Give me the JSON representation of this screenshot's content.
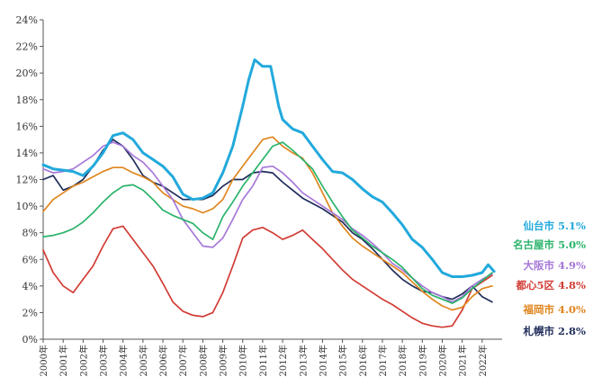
{
  "chart_data": {
    "type": "line",
    "title": "",
    "xlabel": "",
    "ylabel": "",
    "ylim": [
      0,
      24
    ],
    "y_ticks": [
      "0%",
      "2%",
      "4%",
      "6%",
      "8%",
      "10%",
      "12%",
      "14%",
      "16%",
      "18%",
      "20%",
      "22%",
      "24%"
    ],
    "x_ticks": [
      "2000年",
      "2001年",
      "2002年",
      "2003年",
      "2004年",
      "2005年",
      "2006年",
      "2007年",
      "2008年",
      "2009年",
      "2010年",
      "2011年",
      "2012年",
      "2013年",
      "2014年",
      "2015年",
      "2016年",
      "2017年",
      "2018年",
      "2019年",
      "2020年",
      "2021年",
      "2022年"
    ],
    "grid": false,
    "legend": "right",
    "series": [
      {
        "name": "仙台市",
        "label": "仙台市 5.1%",
        "color": "#22a9dc",
        "x": [
          2000,
          2000.5,
          2001,
          2001.5,
          2002,
          2002.5,
          2003,
          2003.5,
          2004,
          2004.5,
          2005,
          2005.5,
          2006,
          2006.5,
          2007,
          2007.5,
          2008,
          2008.5,
          2009,
          2009.5,
          2010,
          2010.3,
          2010.6,
          2011,
          2011.4,
          2011.8,
          2012,
          2012.5,
          2013,
          2013.5,
          2014,
          2014.5,
          2015,
          2015.5,
          2016,
          2016.5,
          2017,
          2017.5,
          2018,
          2018.5,
          2019,
          2019.5,
          2020,
          2020.5,
          2021,
          2021.5,
          2022,
          2022.3,
          2022.6
        ],
        "values": [
          13.1,
          12.8,
          12.7,
          12.6,
          12.3,
          13.0,
          14.0,
          15.3,
          15.5,
          15.0,
          14.0,
          13.5,
          13.0,
          12.2,
          10.9,
          10.5,
          10.6,
          11.0,
          12.5,
          14.5,
          17.5,
          19.5,
          21.0,
          20.5,
          20.5,
          17.5,
          16.5,
          15.8,
          15.5,
          14.5,
          13.5,
          12.6,
          12.5,
          12.0,
          11.3,
          10.7,
          10.3,
          9.5,
          8.6,
          7.5,
          6.9,
          6.0,
          5.0,
          4.7,
          4.7,
          4.8,
          5.0,
          5.6,
          5.1
        ]
      },
      {
        "name": "名古屋市",
        "label": "名古屋市 5.0%",
        "color": "#2bb36b",
        "x": [
          2000,
          2000.5,
          2001,
          2001.5,
          2002,
          2002.5,
          2003,
          2003.5,
          2004,
          2004.5,
          2005,
          2005.5,
          2006,
          2006.5,
          2007,
          2007.5,
          2008,
          2008.5,
          2009,
          2009.5,
          2010,
          2010.5,
          2011,
          2011.5,
          2012,
          2012.5,
          2013,
          2013.5,
          2014,
          2014.5,
          2015,
          2015.5,
          2016,
          2016.5,
          2017,
          2017.5,
          2018,
          2018.5,
          2019,
          2019.5,
          2020,
          2020.5,
          2021,
          2021.5,
          2022,
          2022.5
        ],
        "values": [
          7.7,
          7.8,
          8.0,
          8.3,
          8.8,
          9.5,
          10.3,
          11.0,
          11.5,
          11.6,
          11.2,
          10.5,
          9.7,
          9.3,
          9.0,
          8.7,
          8.0,
          7.5,
          9.2,
          10.3,
          11.5,
          12.5,
          13.5,
          14.5,
          14.8,
          14.2,
          13.5,
          12.8,
          11.5,
          10.3,
          9.2,
          8.2,
          7.6,
          7.0,
          6.5,
          6.0,
          5.4,
          4.6,
          3.8,
          3.3,
          3.0,
          2.7,
          3.1,
          3.8,
          4.4,
          5.0
        ]
      },
      {
        "name": "大阪市",
        "label": "大阪市 4.9%",
        "color": "#a678d8",
        "x": [
          2000,
          2000.5,
          2001,
          2001.5,
          2002,
          2002.5,
          2003,
          2003.5,
          2004,
          2004.5,
          2005,
          2005.5,
          2006,
          2006.5,
          2007,
          2007.5,
          2008,
          2008.5,
          2009,
          2009.5,
          2010,
          2010.5,
          2011,
          2011.5,
          2012,
          2012.5,
          2013,
          2013.5,
          2014,
          2014.5,
          2015,
          2015.5,
          2016,
          2016.5,
          2017,
          2017.5,
          2018,
          2018.5,
          2019,
          2019.5,
          2020,
          2020.5,
          2021,
          2021.5,
          2022,
          2022.5
        ],
        "values": [
          12.8,
          12.5,
          12.6,
          12.8,
          13.3,
          13.8,
          14.5,
          14.8,
          14.5,
          13.8,
          13.3,
          12.5,
          11.5,
          10.5,
          9.0,
          8.0,
          7.0,
          6.9,
          7.6,
          9.0,
          10.5,
          11.5,
          12.9,
          13.0,
          12.5,
          11.8,
          11.0,
          10.5,
          10.0,
          9.5,
          9.0,
          8.3,
          7.8,
          7.2,
          6.5,
          5.7,
          5.2,
          4.6,
          4.0,
          3.5,
          3.2,
          2.8,
          3.2,
          4.0,
          4.5,
          4.9
        ]
      },
      {
        "name": "都心5区",
        "label": "都心5区 4.8%",
        "color": "#d23c35",
        "x": [
          2000,
          2000.5,
          2001,
          2001.5,
          2002,
          2002.5,
          2003,
          2003.5,
          2004,
          2004.5,
          2005,
          2005.5,
          2006,
          2006.5,
          2007,
          2007.5,
          2008,
          2008.5,
          2009,
          2009.5,
          2010,
          2010.5,
          2011,
          2011.5,
          2012,
          2012.5,
          2013,
          2013.5,
          2014,
          2014.5,
          2015,
          2015.5,
          2016,
          2016.5,
          2017,
          2017.5,
          2018,
          2018.5,
          2019,
          2019.5,
          2020,
          2020.5,
          2021,
          2021.5,
          2022,
          2022.5
        ],
        "values": [
          6.7,
          5.0,
          4.0,
          3.5,
          4.5,
          5.5,
          7.0,
          8.3,
          8.5,
          7.5,
          6.5,
          5.5,
          4.2,
          2.8,
          2.1,
          1.8,
          1.7,
          2.0,
          3.5,
          5.5,
          7.6,
          8.2,
          8.4,
          8.0,
          7.5,
          7.8,
          8.2,
          7.5,
          6.8,
          6.0,
          5.2,
          4.5,
          4.0,
          3.5,
          3.0,
          2.6,
          2.1,
          1.6,
          1.2,
          1.0,
          0.9,
          1.0,
          2.2,
          3.8,
          4.3,
          4.8
        ]
      },
      {
        "name": "福岡市",
        "label": "福岡市 4.0%",
        "color": "#e0861f",
        "x": [
          2000,
          2000.5,
          2001,
          2001.5,
          2002,
          2002.5,
          2003,
          2003.5,
          2004,
          2004.5,
          2005,
          2005.5,
          2006,
          2006.5,
          2007,
          2007.5,
          2008,
          2008.5,
          2009,
          2009.5,
          2010,
          2010.5,
          2011,
          2011.5,
          2012,
          2012.5,
          2013,
          2013.5,
          2014,
          2014.5,
          2015,
          2015.5,
          2016,
          2016.5,
          2017,
          2017.5,
          2018,
          2018.5,
          2019,
          2019.5,
          2020,
          2020.5,
          2021,
          2021.5,
          2022,
          2022.5
        ],
        "values": [
          9.6,
          10.5,
          11.0,
          11.5,
          11.8,
          12.2,
          12.6,
          12.9,
          12.9,
          12.5,
          12.2,
          11.8,
          11.0,
          10.5,
          10.0,
          9.8,
          9.5,
          9.8,
          10.5,
          12.0,
          13.0,
          14.0,
          15.0,
          15.2,
          14.5,
          14.0,
          13.6,
          12.5,
          11.0,
          9.5,
          8.5,
          7.6,
          7.0,
          6.5,
          6.0,
          5.5,
          5.0,
          4.3,
          3.6,
          3.0,
          2.5,
          2.2,
          2.4,
          3.2,
          3.8,
          4.0
        ]
      },
      {
        "name": "札幌市",
        "label": "札幌市 2.8%",
        "color": "#1f2d5a",
        "x": [
          2000,
          2000.5,
          2001,
          2001.5,
          2002,
          2002.5,
          2003,
          2003.5,
          2004,
          2004.5,
          2005,
          2005.5,
          2006,
          2006.5,
          2007,
          2007.5,
          2008,
          2008.5,
          2009,
          2009.5,
          2010,
          2010.5,
          2011,
          2011.5,
          2012,
          2012.5,
          2013,
          2013.5,
          2014,
          2014.5,
          2015,
          2015.5,
          2016,
          2016.5,
          2017,
          2017.5,
          2018,
          2018.5,
          2019,
          2019.5,
          2020,
          2020.5,
          2021,
          2021.5,
          2022,
          2022.5
        ],
        "values": [
          12.0,
          12.3,
          11.2,
          11.5,
          12.0,
          13.0,
          14.2,
          15.0,
          14.5,
          13.5,
          12.3,
          11.8,
          11.5,
          11.0,
          10.5,
          10.5,
          10.5,
          10.8,
          11.5,
          12.0,
          12.0,
          12.5,
          12.6,
          12.5,
          11.8,
          11.2,
          10.6,
          10.2,
          9.8,
          9.3,
          8.8,
          8.0,
          7.5,
          6.8,
          6.0,
          5.2,
          4.5,
          4.0,
          3.6,
          3.5,
          3.2,
          3.0,
          3.4,
          4.0,
          3.2,
          2.8
        ]
      }
    ]
  }
}
